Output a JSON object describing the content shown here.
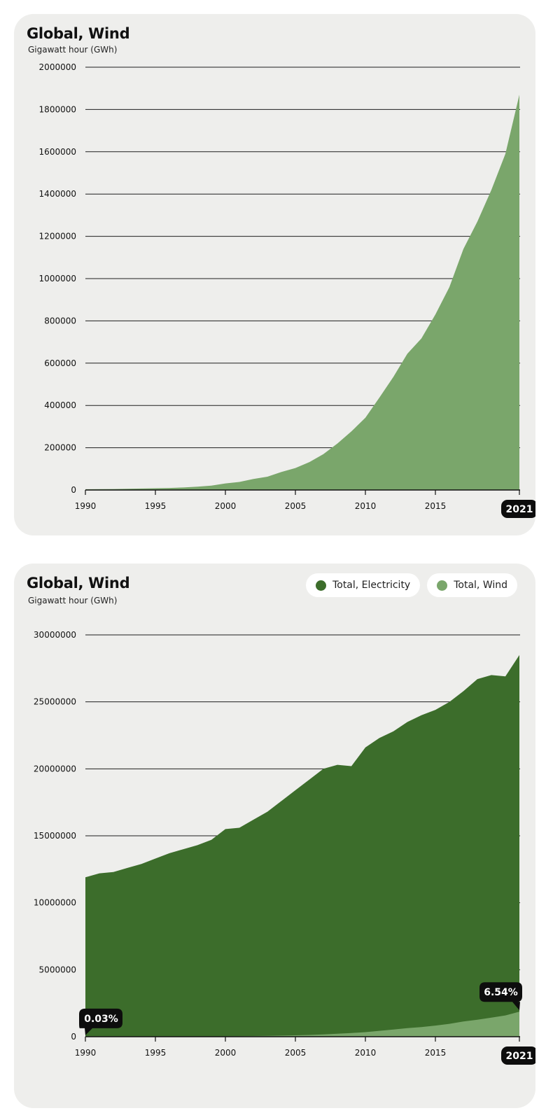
{
  "chart_data": [
    {
      "type": "area",
      "title": "Global, Wind",
      "subtitle": "Gigawatt hour (GWh)",
      "x": [
        1990,
        1991,
        1992,
        1993,
        1994,
        1995,
        1996,
        1997,
        1998,
        1999,
        2000,
        2001,
        2002,
        2003,
        2004,
        2005,
        2006,
        2007,
        2008,
        2009,
        2010,
        2011,
        2012,
        2013,
        2014,
        2015,
        2016,
        2017,
        2018,
        2019,
        2020,
        2021
      ],
      "series": [
        {
          "color": "#7aa66b",
          "values": [
            3600,
            4000,
            4600,
            5600,
            7100,
            8300,
            9500,
            12000,
            16000,
            21000,
            31000,
            38000,
            52000,
            63000,
            85000,
            104000,
            132000,
            170000,
            220000,
            277000,
            342000,
            437000,
            535000,
            645000,
            717000,
            830000,
            960000,
            1140000,
            1270000,
            1420000,
            1590000,
            1870000
          ]
        }
      ],
      "ylim": [
        0,
        2000000
      ],
      "yticks": [
        "0",
        "200000",
        "400000",
        "600000",
        "800000",
        "1000000",
        "1200000",
        "1400000",
        "1600000",
        "1800000",
        "2000000"
      ],
      "xticks": [
        "1990",
        "1995",
        "2000",
        "2005",
        "2010",
        "2015"
      ],
      "highlight_label": "2021",
      "grid": true
    },
    {
      "type": "area",
      "title": "Global, Wind",
      "subtitle": "Gigawatt hour (GWh)",
      "x": [
        1990,
        1991,
        1992,
        1993,
        1994,
        1995,
        1996,
        1997,
        1998,
        1999,
        2000,
        2001,
        2002,
        2003,
        2004,
        2005,
        2006,
        2007,
        2008,
        2009,
        2010,
        2011,
        2012,
        2013,
        2014,
        2015,
        2016,
        2017,
        2018,
        2019,
        2020,
        2021
      ],
      "series": [
        {
          "name": "Total, Electricity",
          "color": "#3c6d2b",
          "values": [
            11900000,
            12200000,
            12300000,
            12600000,
            12900000,
            13300000,
            13700000,
            14000000,
            14300000,
            14700000,
            15500000,
            15600000,
            16200000,
            16800000,
            17600000,
            18400000,
            19200000,
            20000000,
            20300000,
            20200000,
            21600000,
            22300000,
            22800000,
            23500000,
            24000000,
            24400000,
            25000000,
            25800000,
            26700000,
            27000000,
            26900000,
            28500000
          ]
        },
        {
          "name": "Total, Wind",
          "color": "#7aa66b",
          "values": [
            3600,
            4000,
            4600,
            5600,
            7100,
            8300,
            9500,
            12000,
            16000,
            21000,
            31000,
            38000,
            52000,
            63000,
            85000,
            104000,
            132000,
            170000,
            220000,
            277000,
            342000,
            437000,
            535000,
            645000,
            717000,
            830000,
            960000,
            1140000,
            1270000,
            1420000,
            1590000,
            1870000
          ]
        }
      ],
      "ylim": [
        0,
        30000000
      ],
      "yticks": [
        "0",
        "5000000",
        "10000000",
        "15000000",
        "20000000",
        "25000000",
        "30000000"
      ],
      "xticks": [
        "1990",
        "1995",
        "2000",
        "2005",
        "2010",
        "2015"
      ],
      "highlight_label": "2021",
      "annotations": [
        {
          "x": 1990,
          "y": 3600,
          "text": "0.03%"
        },
        {
          "x": 2021,
          "y": 1870000,
          "text": "6.54%"
        }
      ],
      "legend": "top-right",
      "grid": true
    }
  ]
}
